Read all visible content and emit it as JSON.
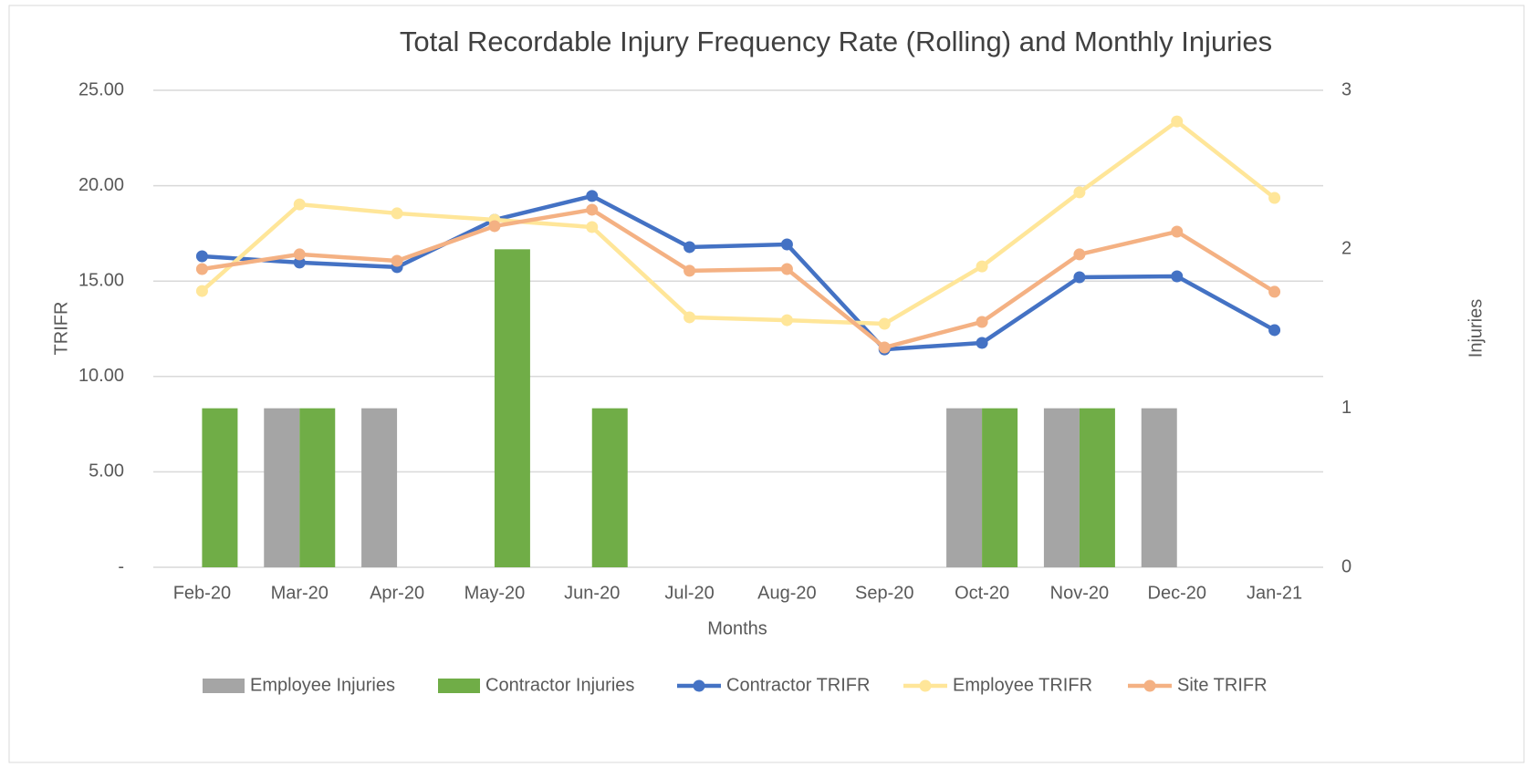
{
  "chart_data": {
    "type": "combo",
    "title": "Total Recordable Injury Frequency Rate (Rolling) and Monthly Injuries",
    "x_label": "Months",
    "y_label": "TRIFR",
    "y2_label": "Injuries",
    "categories": [
      "Feb-20",
      "Mar-20",
      "Apr-20",
      "May-20",
      "Jun-20",
      "Jul-20",
      "Aug-20",
      "Sep-20",
      "Oct-20",
      "Nov-20",
      "Dec-20",
      "Jan-21"
    ],
    "ylim": [
      0,
      25
    ],
    "yticks": [
      {
        "value": 0,
        "label": "-"
      },
      {
        "value": 5,
        "label": "5.00"
      },
      {
        "value": 10,
        "label": "10.00"
      },
      {
        "value": 15,
        "label": "15.00"
      },
      {
        "value": 20,
        "label": "20.00"
      },
      {
        "value": 25,
        "label": "25.00"
      }
    ],
    "y2lim": [
      0,
      3
    ],
    "y2ticks": [
      0,
      1,
      2,
      3
    ],
    "grid": true,
    "legend": "bottom",
    "series": [
      {
        "name": "Employee Injuries",
        "type": "bar",
        "axis": "y2",
        "color": "#a5a5a5",
        "values": [
          0,
          1,
          1,
          0,
          0,
          0,
          0,
          0,
          1,
          1,
          1,
          0
        ]
      },
      {
        "name": "Contractor Injuries",
        "type": "bar",
        "axis": "y2",
        "color": "#70ad47",
        "values": [
          1,
          1,
          0,
          2,
          1,
          0,
          0,
          0,
          1,
          1,
          0,
          0
        ]
      },
      {
        "name": "Contractor TRIFR",
        "type": "line",
        "color": "#4472c4",
        "values": [
          16.3,
          15.97,
          15.73,
          18.21,
          19.46,
          16.78,
          16.92,
          11.42,
          11.76,
          15.2,
          15.25,
          12.43
        ]
      },
      {
        "name": "Employee TRIFR",
        "type": "line",
        "color": "#ffe699",
        "values": [
          14.48,
          19.02,
          18.55,
          18.21,
          17.83,
          13.1,
          12.95,
          12.76,
          15.77,
          19.65,
          23.37,
          19.36
        ]
      },
      {
        "name": "Site TRIFR",
        "type": "line",
        "color": "#f4b183",
        "values": [
          15.63,
          16.4,
          16.06,
          17.88,
          18.74,
          15.54,
          15.63,
          11.52,
          12.86,
          16.4,
          17.59,
          14.44
        ]
      }
    ]
  }
}
